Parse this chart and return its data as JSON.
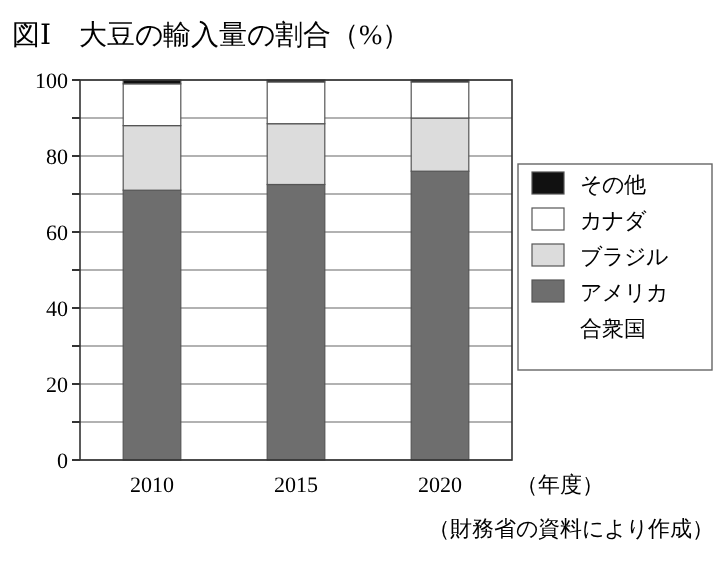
{
  "chart_data": {
    "type": "bar",
    "title": "図Ⅰ　大豆の輸入量の割合（%）",
    "xlabel": "（年度）",
    "annotations": [
      "（財務省の資料により作成）"
    ],
    "categories": [
      "2010",
      "2015",
      "2020"
    ],
    "stacked": true,
    "series": [
      {
        "name": "アメリカ合衆国",
        "color": "#6e6e6e",
        "values": [
          71,
          72.5,
          76
        ]
      },
      {
        "name": "ブラジル",
        "color": "#dcdcdc",
        "values": [
          17,
          16,
          14
        ]
      },
      {
        "name": "カナダ",
        "color": "#ffffff",
        "values": [
          11,
          11,
          9.5
        ]
      },
      {
        "name": "その他",
        "color": "#111111",
        "values": [
          1,
          0.5,
          0.5
        ]
      }
    ],
    "ylim": [
      0,
      100
    ],
    "yticks": [
      0,
      {
        "value": 10,
        "label": null
      },
      20,
      {
        "value": 30,
        "label": null
      },
      40,
      {
        "value": 50,
        "label": null
      },
      60,
      {
        "value": 70,
        "label": null
      },
      80,
      {
        "value": 90,
        "label": null
      },
      100
    ],
    "grid": "y",
    "legend": "right"
  }
}
